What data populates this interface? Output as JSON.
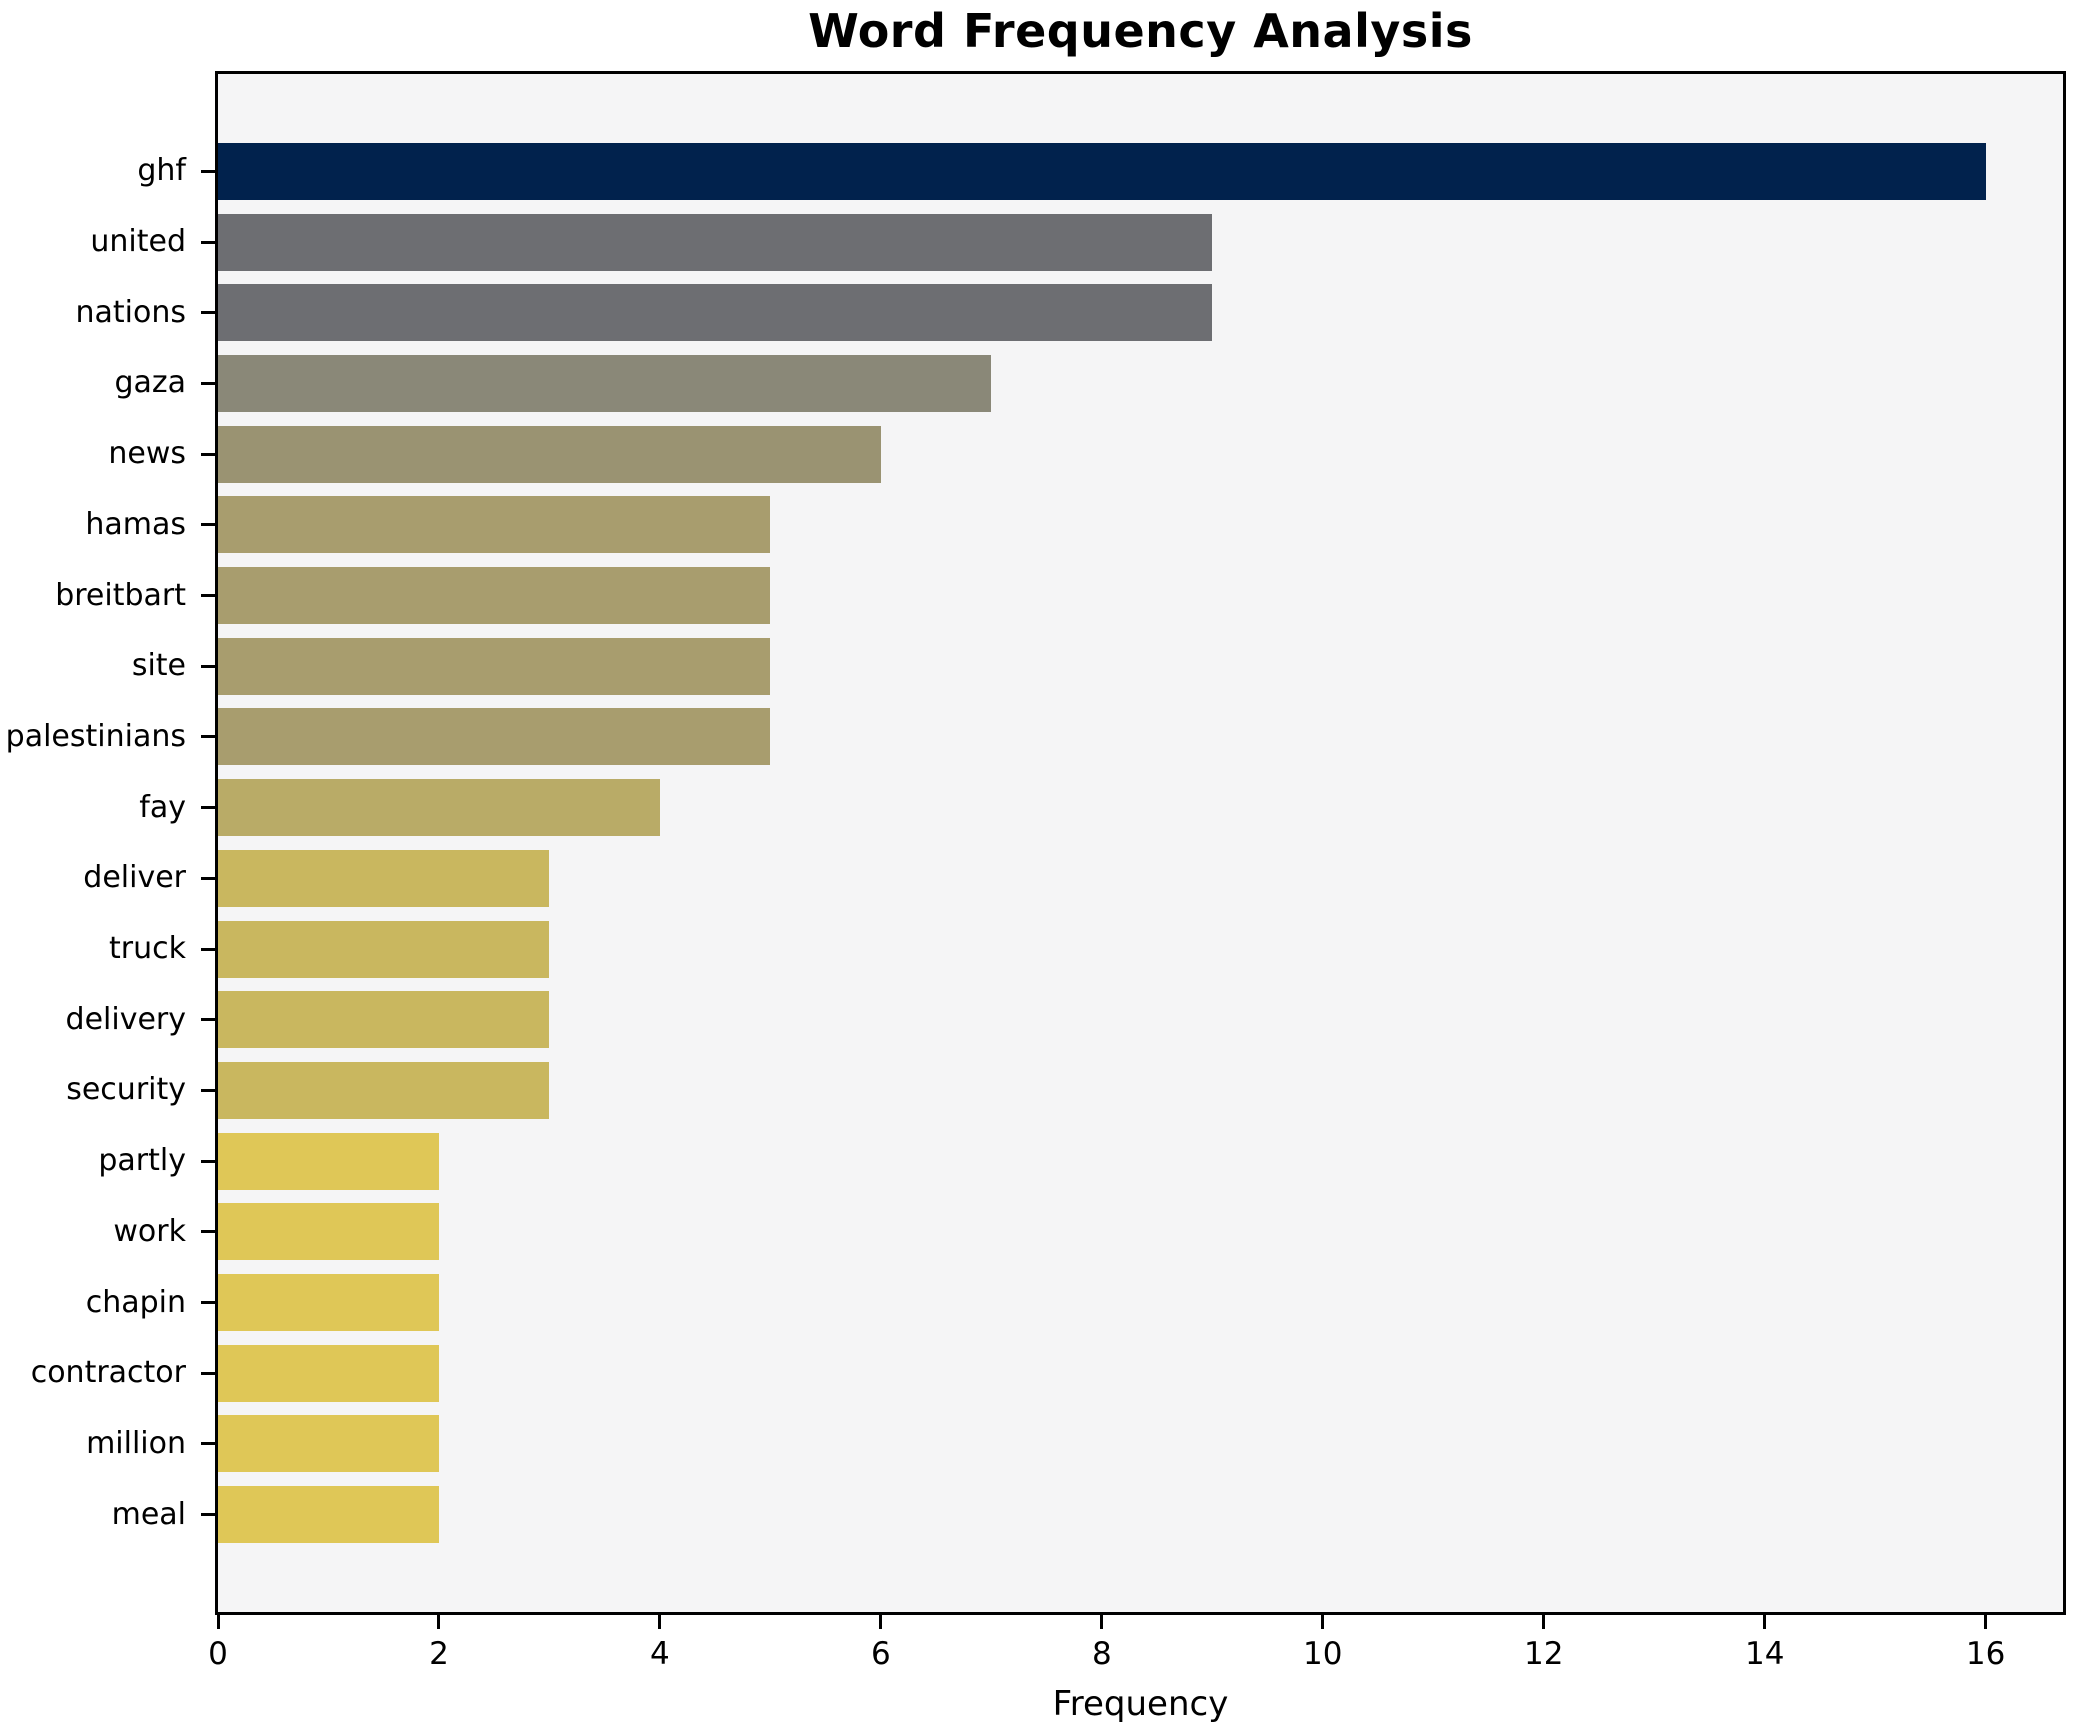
{
  "title": "Word Frequency Analysis",
  "chart_data": {
    "type": "bar",
    "orientation": "horizontal",
    "title": "Word Frequency Analysis",
    "xlabel": "Frequency",
    "ylabel": "",
    "categories": [
      "ghf",
      "united",
      "nations",
      "gaza",
      "news",
      "hamas",
      "breitbart",
      "site",
      "palestinians",
      "fay",
      "deliver",
      "truck",
      "delivery",
      "security",
      "partly",
      "work",
      "chapin",
      "contractor",
      "million",
      "meal"
    ],
    "values": [
      16,
      9,
      9,
      7,
      6,
      5,
      5,
      5,
      5,
      4,
      3,
      3,
      3,
      3,
      2,
      2,
      2,
      2,
      2,
      2
    ],
    "bar_colors": [
      "#01224d",
      "#6d6e72",
      "#6d6e72",
      "#8a8878",
      "#9a9372",
      "#a89d6e",
      "#a89d6e",
      "#a89d6e",
      "#a89d6e",
      "#b9ab67",
      "#c9b75f",
      "#c9b75f",
      "#c9b75f",
      "#c9b75f",
      "#dfc757",
      "#dfc757",
      "#dfc757",
      "#dfc757",
      "#dfc757",
      "#dfc757"
    ],
    "xlim": [
      0,
      16.7
    ],
    "xticks": [
      "0",
      "2",
      "4",
      "6",
      "8",
      "10",
      "12",
      "14",
      "16"
    ],
    "xtick_values": [
      0,
      2,
      4,
      6,
      8,
      10,
      12,
      14,
      16
    ],
    "grid": false,
    "legend": null,
    "colormap": "cividis-reversed-by-value",
    "plot_background": "#f5f5f6",
    "figure_background": "#ffffff",
    "axis_color": "#000000"
  }
}
